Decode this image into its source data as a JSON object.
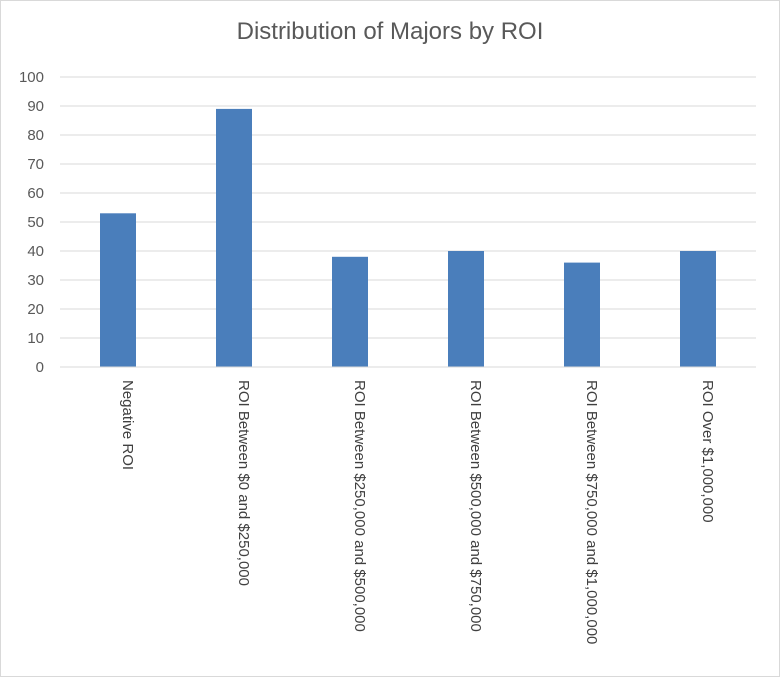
{
  "chart_data": {
    "type": "bar",
    "title": "Distribution of Majors by ROI",
    "xlabel": "",
    "ylabel": "",
    "categories": [
      "Negative ROI",
      "ROI Between $0 and $250,000",
      "ROI Between $250,000 and $500,000",
      "ROI Between $500,000 and $750,000",
      "ROI Between $750,000 and $1,000,000",
      "ROI Over $1,000,000"
    ],
    "values": [
      53,
      89,
      38,
      40,
      36,
      40
    ],
    "ylim": [
      0,
      100
    ],
    "yticks": [
      "0",
      "10",
      "20",
      "30",
      "40",
      "50",
      "60",
      "70",
      "80",
      "90",
      "100"
    ],
    "grid": true,
    "legend": "none",
    "colors": {
      "bar": "#4a7ebb",
      "grid": "#d9d9d9",
      "text": "#595959"
    }
  }
}
